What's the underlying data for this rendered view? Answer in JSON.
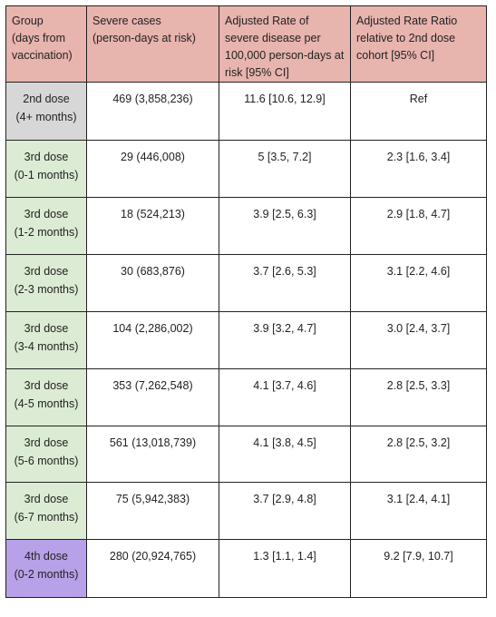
{
  "table": {
    "headers": [
      "Group\n(days from\nvaccination)",
      "Severe cases\n(person-days at risk)",
      "Adjusted Rate of\nsevere disease per\n100,000 person-days at\nrisk [95% CI]",
      "Adjusted Rate Ratio\nrelative to 2nd dose\ncohort [95% CI]"
    ],
    "rows": [
      {
        "group": "2nd dose\n(4+ months)",
        "cases": "469 (3,858,236)",
        "rate": "11.6 [10.6, 12.9]",
        "ratio": "Ref",
        "color": "#d7d7d7"
      },
      {
        "group": "3rd dose\n(0-1 months)",
        "cases": "29 (446,008)",
        "rate": "5 [3.5, 7.2]",
        "ratio": "2.3  [1.6, 3.4]",
        "color": "#dcebd3"
      },
      {
        "group": "3rd dose\n(1-2 months)",
        "cases": "18 (524,213)",
        "rate": "3.9 [2.5, 6.3]",
        "ratio": "2.9  [1.8, 4.7]",
        "color": "#dcebd3"
      },
      {
        "group": "3rd dose\n(2-3 months)",
        "cases": "30 (683,876)",
        "rate": "3.7 [2.6, 5.3]",
        "ratio": "3.1  [2.2, 4.6]",
        "color": "#dcebd3"
      },
      {
        "group": "3rd dose\n(3-4 months)",
        "cases": "104 (2,286,002)",
        "rate": "3.9 [3.2, 4.7]",
        "ratio": "3.0  [2.4, 3.7]",
        "color": "#dcebd3"
      },
      {
        "group": "3rd dose\n(4-5 months)",
        "cases": "353 (7,262,548)",
        "rate": "4.1 [3.7, 4.6]",
        "ratio": "2.8  [2.5, 3.3]",
        "color": "#dcebd3"
      },
      {
        "group": "3rd dose\n(5-6 months)",
        "cases": "561 (13,018,739)",
        "rate": "4.1 [3.8, 4.5]",
        "ratio": "2.8  [2.5, 3.2]",
        "color": "#dcebd3"
      },
      {
        "group": "3rd dose\n(6-7 months)",
        "cases": "75 (5,942,383)",
        "rate": "3.7 [2.9, 4.8]",
        "ratio": "3.1  [2.4, 4.1]",
        "color": "#dcebd3"
      },
      {
        "group": "4th dose\n(0-2 months)",
        "cases": "280 (20,924,765)",
        "rate": "1.3 [1.1, 1.4]",
        "ratio": "9.2  [7.9, 10.7]",
        "color": "#b7a1e8"
      }
    ]
  }
}
